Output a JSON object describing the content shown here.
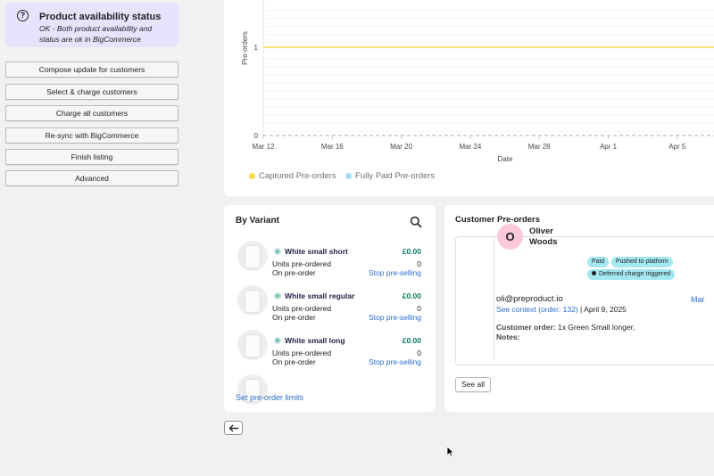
{
  "status": {
    "icon": "question-circle-icon",
    "title": "Product availability status",
    "description": "OK - Both product availability and status are ok in BigCommerce"
  },
  "actions": [
    {
      "label": "Compose update for customers"
    },
    {
      "label": "Select & charge customers"
    },
    {
      "label": "Charge all customers"
    },
    {
      "label": "Re-sync with BigCommerce"
    },
    {
      "label": "Finish listing"
    },
    {
      "label": "Advanced"
    }
  ],
  "chart_data": {
    "type": "line",
    "ylabel": "Pre-orders",
    "xlabel": "Date",
    "x": [
      "Mar 12",
      "Mar 16",
      "Mar 20",
      "Mar 24",
      "Mar 28",
      "Apr 1",
      "Apr 5"
    ],
    "y_ticks": [
      "0",
      "1"
    ],
    "ylim": [
      0,
      1
    ],
    "series": [
      {
        "name": "Captured Pre-orders",
        "color": "#ffd84d",
        "values": [
          1,
          1,
          1,
          1,
          1,
          1,
          1
        ]
      },
      {
        "name": "Fully Paid Pre-orders",
        "color": "#a8dcf5",
        "values": [
          0,
          0,
          0,
          0,
          0,
          0,
          0
        ]
      }
    ],
    "legend": "bottom-left",
    "grid": true
  },
  "variants": {
    "title": "By Variant",
    "search_icon": "search-icon",
    "items": [
      {
        "name": "White small short",
        "price": "£0.00",
        "units_label": "Units pre-ordered",
        "units": "0",
        "status_label": "On pre-order",
        "action": "Stop pre-selling"
      },
      {
        "name": "White small regular",
        "price": "£0.00",
        "units_label": "Units pre-ordered",
        "units": "0",
        "status_label": "On pre-order",
        "action": "Stop pre-selling"
      },
      {
        "name": "White small long",
        "price": "£0.00",
        "units_label": "Units pre-ordered",
        "units": "0",
        "status_label": "On pre-order",
        "action": "Stop pre-selling"
      }
    ],
    "limits_link": "Set pre-order limits"
  },
  "customers": {
    "title": "Customer Pre-orders",
    "order": {
      "initial": "O",
      "name": "Oliver Woods",
      "badges": [
        "Paid",
        "Pushed to platform",
        "Deferred charge triggered"
      ],
      "email": "oli@preproduct.io",
      "context_link": "See context (order: 132)",
      "separator": "|",
      "date": "April 9, 2025",
      "cut_link": "Mar",
      "customer_order_label": "Customer order:",
      "customer_order_value": "1x Green Small longer,",
      "notes_label": "Notes:"
    },
    "see_all": "See all"
  },
  "back_icon": "arrow-left-icon"
}
